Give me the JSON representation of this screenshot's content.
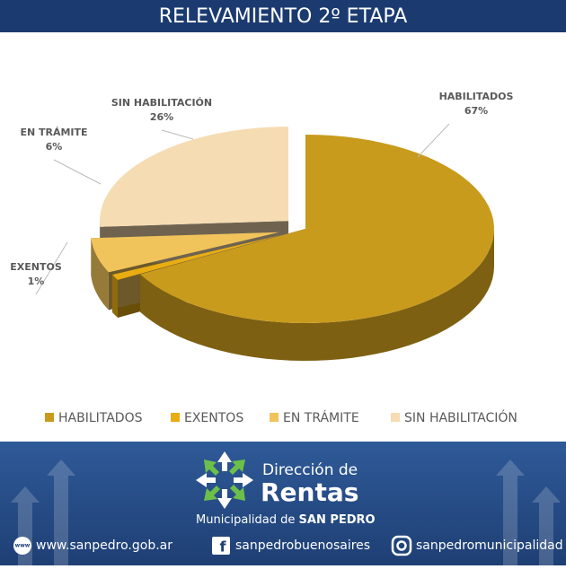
{
  "chart_data": {
    "type": "pie",
    "title": "RELEVAMIENTO 2º ETAPA",
    "categories": [
      "HABILITADOS",
      "EXENTOS",
      "EN TRÁMITE",
      "SIN HABILITACIÓN"
    ],
    "values": [
      67,
      1,
      6,
      26
    ],
    "value_labels": [
      "67%",
      "1%",
      "6%",
      "26%"
    ],
    "colors": [
      "#c99b1c",
      "#e9ad12",
      "#f0c45a",
      "#f6dcb2"
    ],
    "legend": "bottom"
  },
  "footer": {
    "brand_line1": "Dirección de",
    "brand_line2": "Rentas",
    "brand_sub": "Municipalidad de",
    "brand_city": "SAN PEDRO",
    "www_icon": "www",
    "website": "www.sanpedro.gob.ar",
    "facebook": "sanpedrobuenosaires",
    "instagram": "sanpedromunicipalidad"
  }
}
